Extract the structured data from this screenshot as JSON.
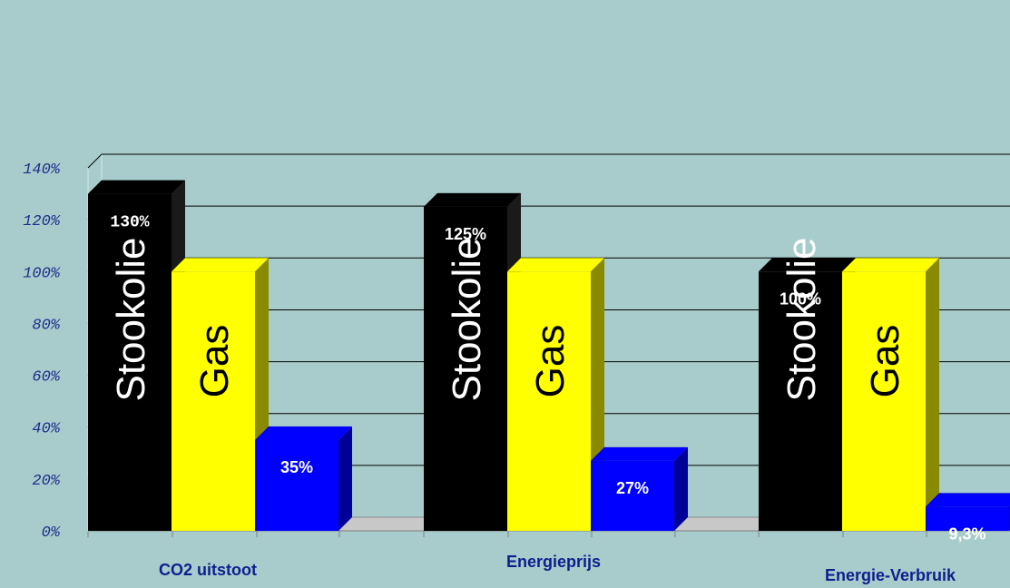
{
  "chart_data": {
    "type": "bar",
    "title": "",
    "xlabel": "",
    "ylabel": "",
    "ylim": [
      0,
      140
    ],
    "y_ticks": [
      "0%",
      "20%",
      "40%",
      "60%",
      "80%",
      "100%",
      "120%",
      "140%"
    ],
    "y_tick_values": [
      0,
      20,
      40,
      60,
      80,
      100,
      120,
      140
    ],
    "grid": true,
    "legend": "none",
    "categories": [
      "CO2 uitstoot",
      "Energieprijs",
      "Energie-Verbruik"
    ],
    "series": [
      {
        "name": "Stookolie",
        "values": [
          130,
          125,
          100
        ],
        "labels": [
          "130%",
          "125%",
          "100%"
        ],
        "color": "#000000",
        "side_color": "#1a1a1a"
      },
      {
        "name": "Gas",
        "values": [
          100,
          100,
          100
        ],
        "labels": [
          "",
          "",
          ""
        ],
        "color": "#ffff00",
        "side_color": "#8a8a00"
      },
      {
        "name": "",
        "values": [
          35,
          27,
          9.3
        ],
        "labels": [
          "35%",
          "27%",
          "9,3%"
        ],
        "color": "#0000ff",
        "side_color": "#000099"
      }
    ]
  }
}
